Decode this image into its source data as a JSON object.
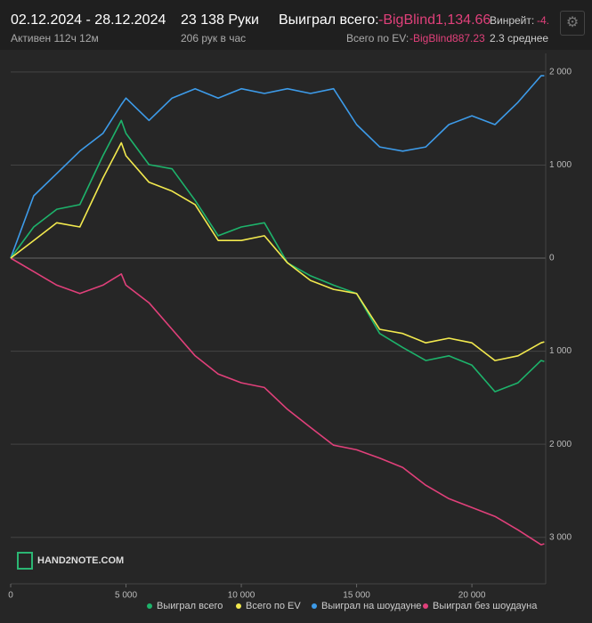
{
  "header": {
    "date_range": "02.12.2024 - 28.12.2024",
    "active": "Активен 112ч 12м",
    "hands": "23 138 Руки",
    "hands_per_hour": "206 рук в час",
    "won_label": "Выиграл всего:",
    "won_value": "-BigBlind1,134.66",
    "winrate_label": "Винрейт:",
    "winrate_value": "-4.",
    "ev_label": "Всего по EV:",
    "ev_value": "-BigBlind887.23",
    "average": "2.3 среднее"
  },
  "logo": "HAND2NOTE.COM",
  "chart_data": {
    "type": "line",
    "x": [
      0,
      1000,
      2000,
      3000,
      4000,
      4800,
      5000,
      6000,
      7000,
      8000,
      9000,
      10000,
      11000,
      12000,
      13000,
      14000,
      15000,
      16000,
      17000,
      18000,
      19000,
      20000,
      21000,
      22000,
      23000,
      23138
    ],
    "series": [
      {
        "name": "Выиграл всего",
        "color": "#1db36b",
        "values": [
          0,
          335,
          525,
          575,
          1100,
          1480,
          1340,
          1005,
          960,
          620,
          240,
          335,
          380,
          -50,
          -190,
          -290,
          -380,
          -810,
          -960,
          -1100,
          -1050,
          -1150,
          -1435,
          -1340,
          -1100,
          -1110
        ]
      },
      {
        "name": "Всего по EV",
        "color": "#f2e94e",
        "values": [
          0,
          190,
          380,
          335,
          860,
          1240,
          1100,
          815,
          720,
          575,
          190,
          190,
          240,
          -50,
          -240,
          -335,
          -380,
          -765,
          -810,
          -910,
          -860,
          -910,
          -1100,
          -1050,
          -910,
          -900
        ]
      },
      {
        "name": "Выиграл на шоудауне",
        "color": "#3d9be9",
        "values": [
          0,
          670,
          910,
          1150,
          1340,
          1650,
          1720,
          1480,
          1720,
          1820,
          1720,
          1820,
          1770,
          1820,
          1770,
          1820,
          1435,
          1195,
          1150,
          1195,
          1435,
          1530,
          1435,
          1675,
          1960,
          1960
        ]
      },
      {
        "name": "Выиграл без шоудауна",
        "color": "#e0407a",
        "values": [
          0,
          -145,
          -290,
          -380,
          -290,
          -170,
          -290,
          -480,
          -765,
          -1050,
          -1245,
          -1340,
          -1390,
          -1625,
          -1820,
          -2010,
          -2060,
          -2150,
          -2250,
          -2440,
          -2585,
          -2680,
          -2775,
          -2920,
          -3080,
          -3070
        ]
      }
    ],
    "xlim": [
      0,
      23200
    ],
    "ylim": [
      -3500,
      2200
    ],
    "xticks": [
      0,
      {
        "value": 5000,
        "label": "5 000"
      },
      {
        "value": 10000,
        "label": "10 000"
      },
      {
        "value": 15000,
        "label": "15 000"
      },
      {
        "value": 20000,
        "label": "20 000"
      }
    ],
    "yticks": [
      {
        "value": 2000,
        "label": "2 000"
      },
      {
        "value": 1000,
        "label": "1 000"
      },
      0,
      {
        "value": -1000,
        "label": "1 000"
      },
      {
        "value": -2000,
        "label": "2 000"
      },
      {
        "value": -3000,
        "label": "3 000"
      }
    ],
    "grid": true
  }
}
